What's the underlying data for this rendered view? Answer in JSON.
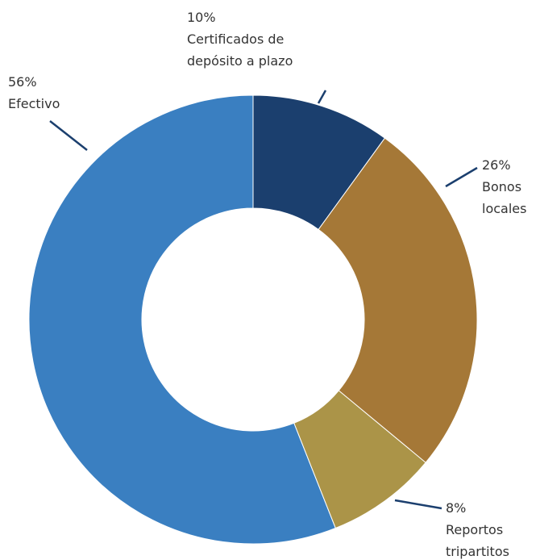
{
  "chart_data": {
    "type": "donut",
    "categories": [
      "Certificados de depósito a plazo",
      "Bonos locales",
      "Reportos tripartitos",
      "Efectivo"
    ],
    "values": [
      10,
      26,
      8,
      56
    ],
    "value_labels": [
      "10%",
      "26%",
      "8%",
      "56%"
    ],
    "colors": [
      "#1b3f6e",
      "#a57837",
      "#ab9448",
      "#3a7fc1"
    ]
  }
}
